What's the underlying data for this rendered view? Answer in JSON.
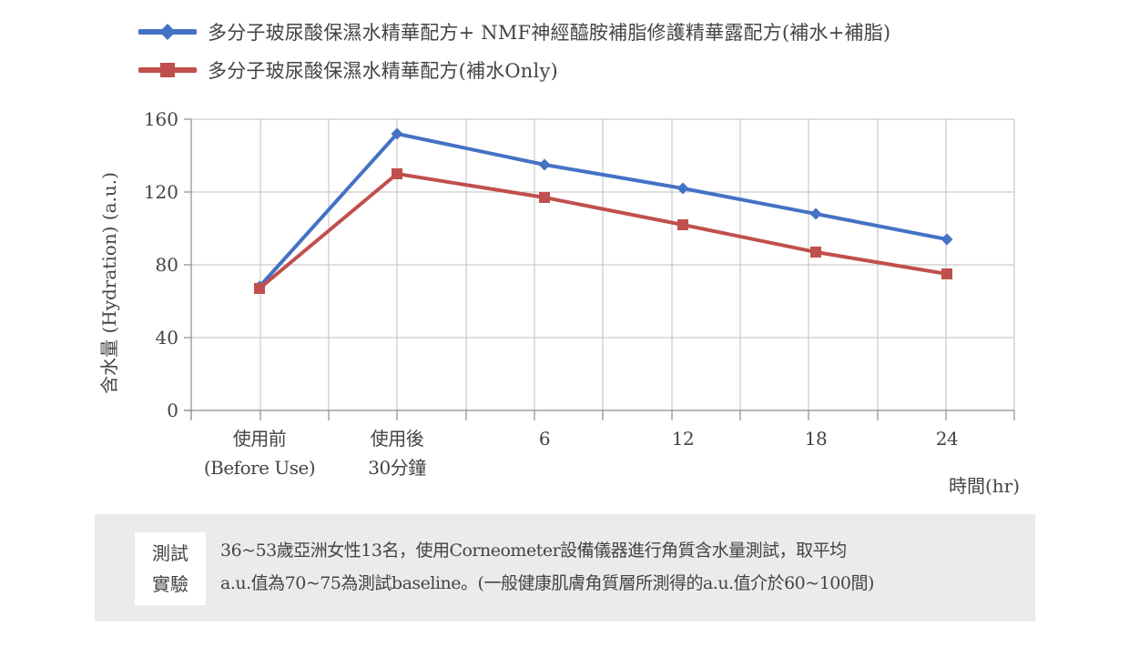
{
  "chart_data": {
    "type": "line",
    "categories": [
      "使用前\n(Before Use)",
      "使用後\n30分鐘",
      "6",
      "12",
      "18",
      "24"
    ],
    "series": [
      {
        "name": "多分子玻尿酸保濕水精華配方+ NMF神經醯胺補脂修護精華露配方(補水+補脂)",
        "color": "#4472c4",
        "marker": "diamond",
        "values": [
          68,
          152,
          135,
          122,
          108,
          94
        ]
      },
      {
        "name": "多分子玻尿酸保濕水精華配方(補水Only)",
        "color": "#c0504d",
        "marker": "square",
        "values": [
          67,
          130,
          117,
          102,
          87,
          75
        ]
      }
    ],
    "ylabel": "含水量 (Hydration) (a.u.)",
    "xlabel": "時間(hr)",
    "ylim": [
      0,
      160
    ],
    "yticks": [
      0,
      40,
      80,
      120,
      160
    ],
    "grid": true,
    "legend_position": "top"
  },
  "note": {
    "tag_line1": "測試",
    "tag_line2": "實驗",
    "line1": "36~53歲亞洲女性13名，使用Corneometer設備儀器進行角質含水量測試，取平均",
    "line2": "a.u.值為70~75為測試baseline。(一般健康肌膚角質層所測得的a.u.值介於60~100間)"
  }
}
